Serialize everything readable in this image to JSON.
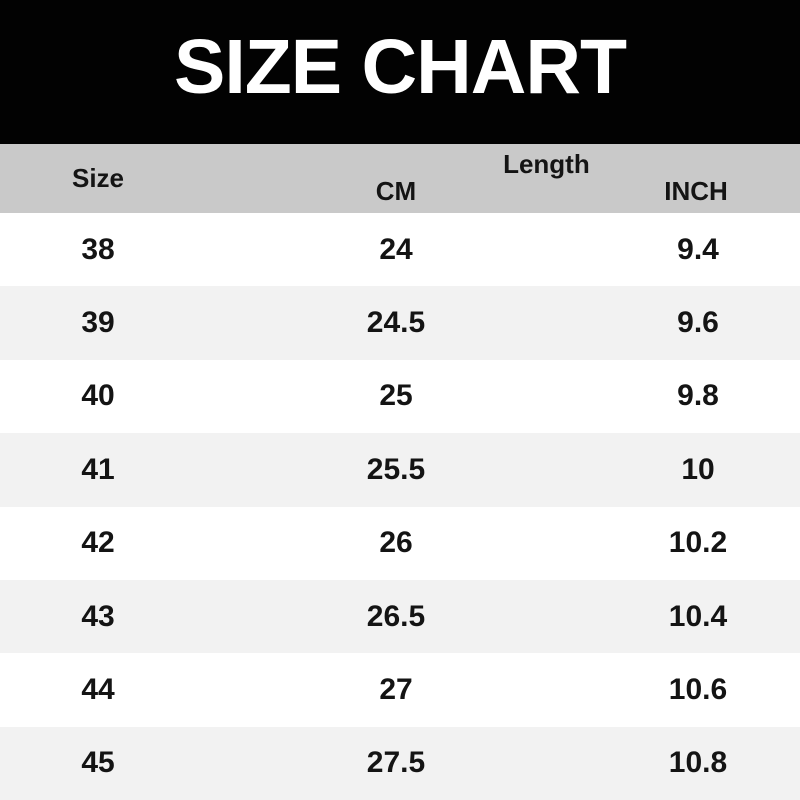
{
  "title": "SIZE CHART",
  "table": {
    "headers": {
      "size": "Size",
      "length_group": "Length",
      "cm": "CM",
      "inch": "INCH"
    },
    "rows": [
      {
        "size": "38",
        "cm": "24",
        "inch": "9.4"
      },
      {
        "size": "39",
        "cm": "24.5",
        "inch": "9.6"
      },
      {
        "size": "40",
        "cm": "25",
        "inch": "9.8"
      },
      {
        "size": "41",
        "cm": "25.5",
        "inch": "10"
      },
      {
        "size": "42",
        "cm": "26",
        "inch": "10.2"
      },
      {
        "size": "43",
        "cm": "26.5",
        "inch": "10.4"
      },
      {
        "size": "44",
        "cm": "27",
        "inch": "10.6"
      },
      {
        "size": "45",
        "cm": "27.5",
        "inch": "10.8"
      }
    ],
    "colors": {
      "banner_bg": "#020202",
      "banner_text": "#ffffff",
      "header_bg": "#c9c9c9",
      "row_bg": "#ffffff",
      "row_alt_bg": "#f2f2f2",
      "text": "#141414"
    }
  },
  "chart_data": {
    "type": "table",
    "title": "SIZE CHART",
    "column_groups": [
      "Size",
      "Length"
    ],
    "columns": [
      "Size",
      "CM",
      "INCH"
    ],
    "rows": [
      [
        "38",
        "24",
        "9.4"
      ],
      [
        "39",
        "24.5",
        "9.6"
      ],
      [
        "40",
        "25",
        "9.8"
      ],
      [
        "41",
        "25.5",
        "10"
      ],
      [
        "42",
        "26",
        "10.2"
      ],
      [
        "43",
        "26.5",
        "10.4"
      ],
      [
        "44",
        "27",
        "10.6"
      ],
      [
        "45",
        "27.5",
        "10.8"
      ]
    ]
  }
}
